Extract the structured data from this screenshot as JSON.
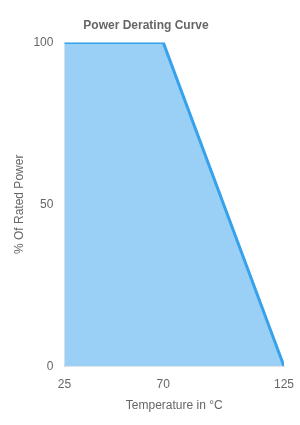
{
  "chart_data": {
    "type": "area",
    "title": "Power Derating Curve",
    "x": [
      25,
      70,
      125
    ],
    "values": [
      100,
      100,
      0
    ],
    "xlabel": "Temperature in °C",
    "ylabel": "% Of Rated Power",
    "xlim": [
      25,
      125
    ],
    "xticks": [
      25,
      70,
      125
    ],
    "ylim": [
      0,
      100
    ],
    "yticks": [
      0,
      50,
      100
    ],
    "grid": false
  }
}
